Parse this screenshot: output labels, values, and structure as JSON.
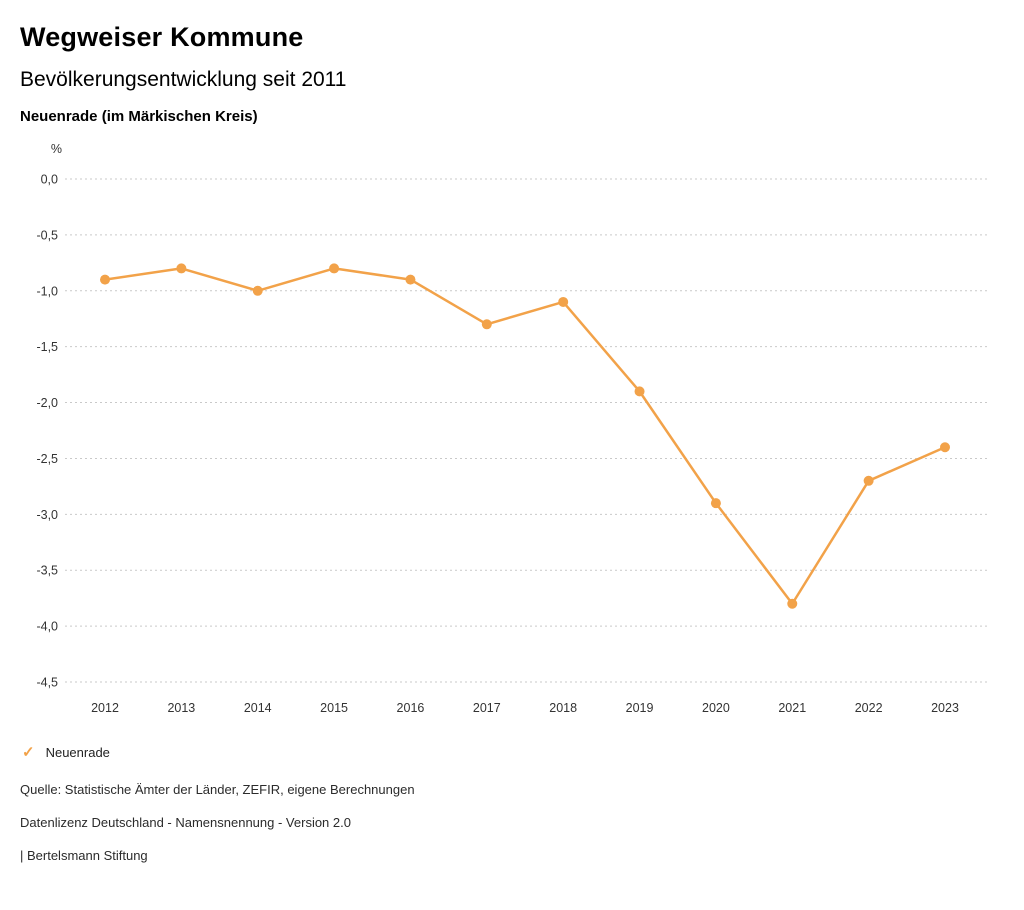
{
  "header": {
    "title": "Wegweiser Kommune",
    "subtitle": "Bevölkerungsentwicklung seit 2011",
    "location": "Neuenrade (im Märkischen Kreis)"
  },
  "chart_data": {
    "type": "line",
    "title": "Bevölkerungsentwicklung seit 2011",
    "subtitle": "Neuenrade (im Märkischen Kreis)",
    "unit_label": "%",
    "xlabel": "",
    "ylabel": "%",
    "categories": [
      "2012",
      "2013",
      "2014",
      "2015",
      "2016",
      "2017",
      "2018",
      "2019",
      "2020",
      "2021",
      "2022",
      "2023"
    ],
    "series": [
      {
        "name": "Neuenrade",
        "values": [
          -0.9,
          -0.8,
          -1.0,
          -0.8,
          -0.9,
          -1.3,
          -1.1,
          -1.9,
          -2.9,
          -3.8,
          -2.7,
          -2.4
        ],
        "color": "#f2a249"
      }
    ],
    "ylim": [
      -4.5,
      0.0
    ],
    "grid": "horizontal-dotted",
    "legend_position": "bottom-left",
    "yticks": [
      {
        "value": 0.0,
        "label": "0,0"
      },
      {
        "value": -0.5,
        "label": "-0,5"
      },
      {
        "value": -1.0,
        "label": "-1,0"
      },
      {
        "value": -1.5,
        "label": "-1,5"
      },
      {
        "value": -2.0,
        "label": "-2,0"
      },
      {
        "value": -2.5,
        "label": "-2,5"
      },
      {
        "value": -3.0,
        "label": "-3,0"
      },
      {
        "value": -3.5,
        "label": "-3,5"
      },
      {
        "value": -4.0,
        "label": "-4,0"
      },
      {
        "value": -4.5,
        "label": "-4,5"
      }
    ]
  },
  "legend": {
    "items": [
      {
        "label": "Neuenrade",
        "color": "#f2a249",
        "marker": "check-icon"
      }
    ]
  },
  "footer": {
    "source": "Quelle: Statistische Ämter der Länder, ZEFIR, eigene Berechnungen",
    "license": "Datenlizenz Deutschland - Namensnennung - Version 2.0",
    "attribution": "| Bertelsmann Stiftung"
  }
}
